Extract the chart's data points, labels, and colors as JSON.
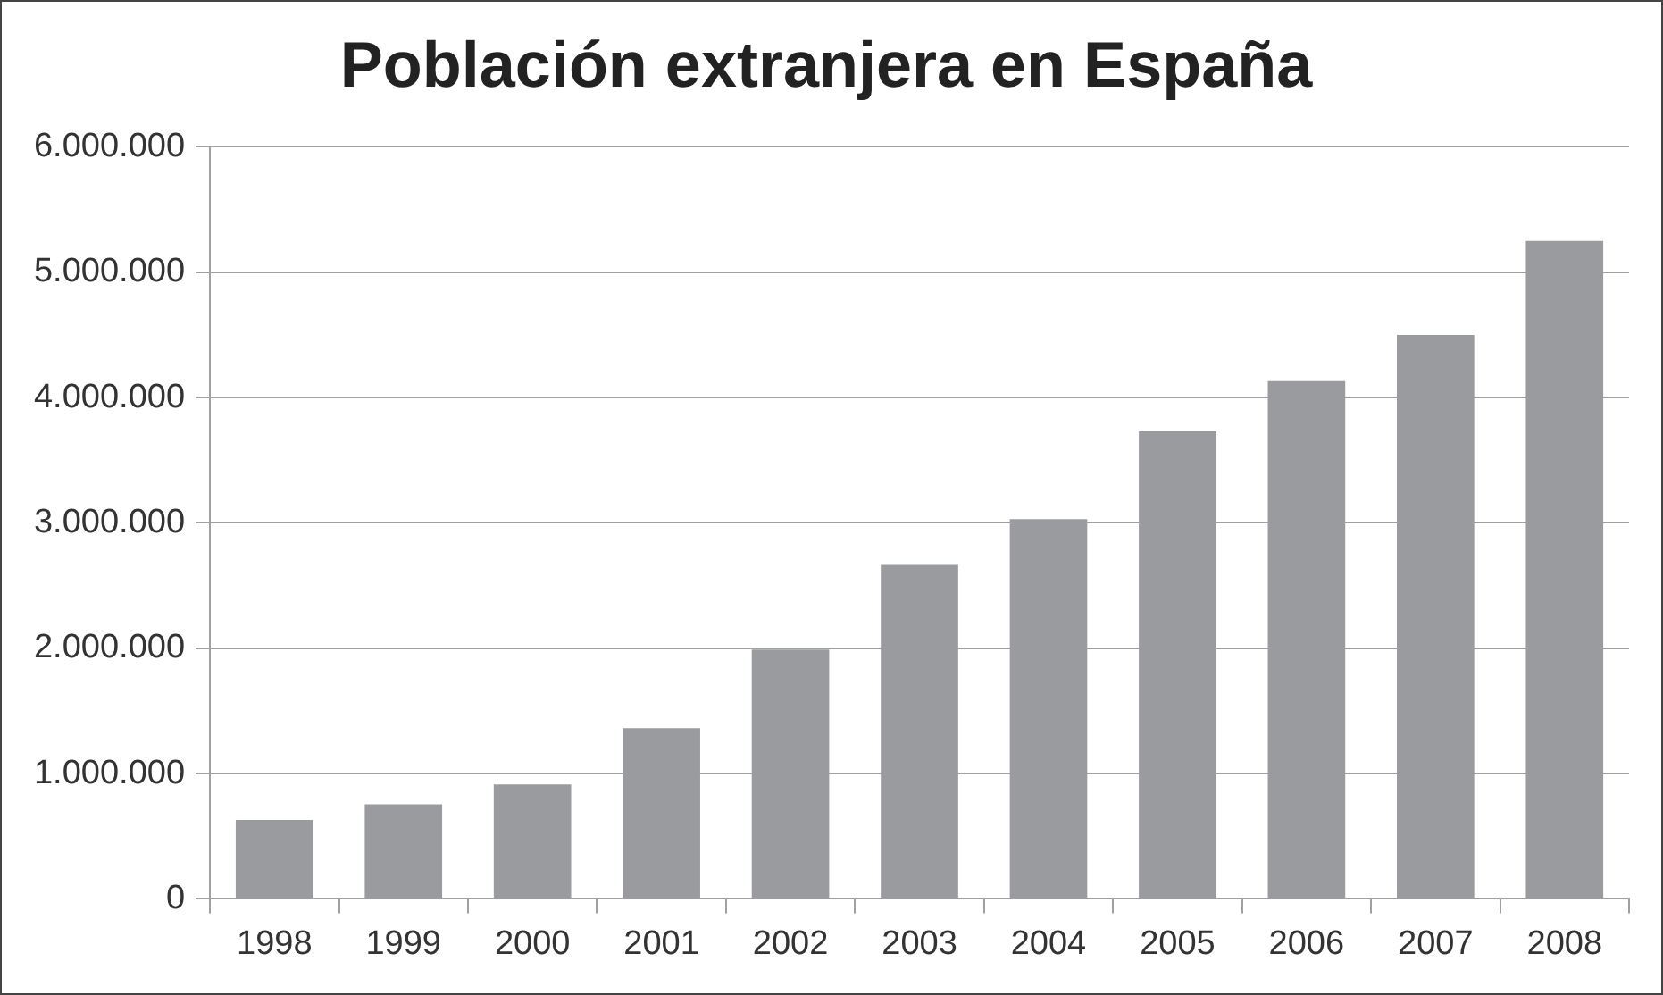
{
  "chart_data": {
    "type": "bar",
    "title": "Población extranjera en España",
    "categories": [
      "1998",
      "1999",
      "2000",
      "2001",
      "2002",
      "2003",
      "2004",
      "2005",
      "2006",
      "2007",
      "2008"
    ],
    "values": [
      630000,
      755000,
      914000,
      1363000,
      1990000,
      2665000,
      3030000,
      3730000,
      4130000,
      4500000,
      5250000
    ],
    "color": "#9a9b9f",
    "ylim": [
      0,
      6000000
    ],
    "yticks": [
      0,
      {
        "value": 1000000,
        "label": "1.000.000"
      },
      {
        "value": 2000000,
        "label": "2.000.000"
      },
      {
        "value": 3000000,
        "label": "3.000.000"
      },
      {
        "value": 4000000,
        "label": "4.000.000"
      },
      {
        "value": 5000000,
        "label": "5.000.000"
      },
      {
        "value": 6000000,
        "label": "6.000.000"
      }
    ],
    "grid": "y",
    "legend": false
  }
}
